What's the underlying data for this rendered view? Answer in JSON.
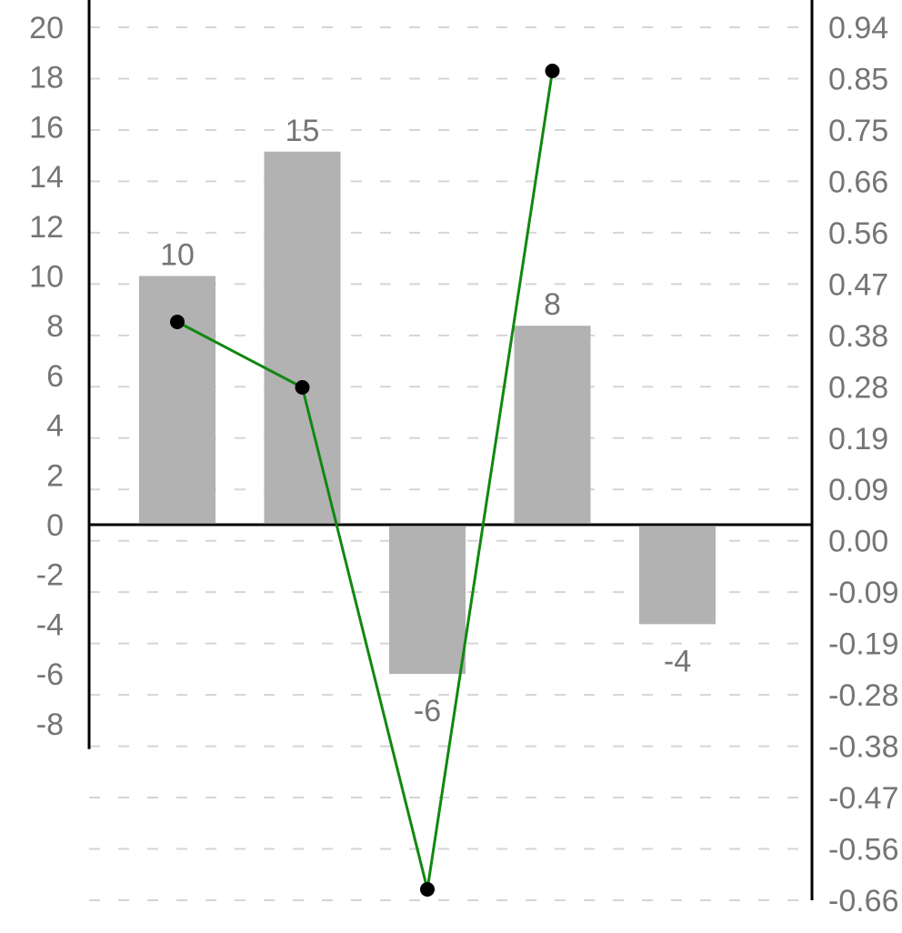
{
  "chart_data": {
    "type": "bar+line",
    "categories": [
      "",
      "",
      "",
      "",
      ""
    ],
    "bar_series": {
      "values": [
        10,
        15,
        -6,
        8,
        -4
      ],
      "data_labels": [
        "10",
        "15",
        "-6",
        "8",
        "-4"
      ],
      "color": "#b2b2b2"
    },
    "line_series": {
      "values": [
        0.4,
        0.28,
        -0.64,
        0.86,
        null
      ],
      "color": "#118811",
      "marker_color": "#000000"
    },
    "left_axis": {
      "ylim": [
        -8,
        20
      ],
      "tick_labels": [
        "20",
        "18",
        "16",
        "14",
        "12",
        "10",
        "8",
        "6",
        "4",
        "2",
        "0",
        "-2",
        "-4",
        "-6",
        "-8"
      ]
    },
    "right_axis": {
      "ylim": [
        -0.66,
        0.94
      ],
      "tick_labels": [
        "0.94",
        "0.85",
        "0.75",
        "0.66",
        "0.56",
        "0.47",
        "0.38",
        "0.28",
        "0.19",
        "0.09",
        "0.00",
        "-0.09",
        "-0.19",
        "-0.28",
        "-0.38",
        "-0.47",
        "-0.56",
        "-0.66"
      ]
    },
    "grid": true,
    "legend": "none",
    "xlabel": "",
    "ylabel": "",
    "title": ""
  }
}
